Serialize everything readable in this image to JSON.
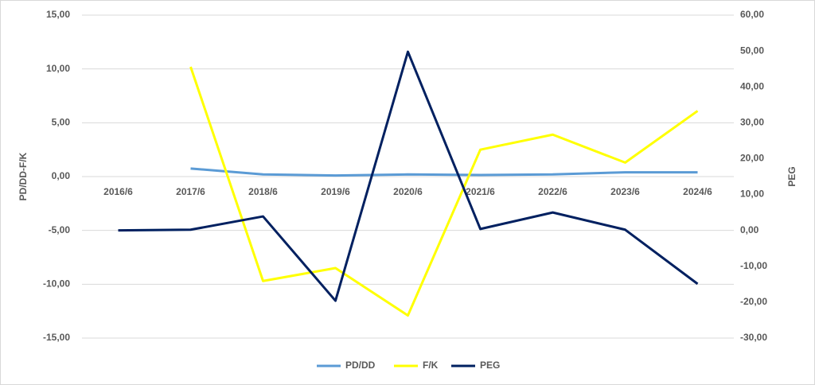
{
  "chart_data": {
    "type": "line",
    "y_label": "PD/DD-F/K",
    "y2_label": "PEG",
    "categories": [
      "2016/6",
      "2017/6",
      "2018/6",
      "2019/6",
      "2020/6",
      "2021/6",
      "2022/6",
      "2023/6",
      "2024/6"
    ],
    "series": [
      {
        "name": "PD/DD",
        "color": "#5b9bd5",
        "values": [
          null,
          0.75,
          0.2,
          0.1,
          0.2,
          0.15,
          0.2,
          0.4,
          0.4
        ]
      },
      {
        "name": "F/K",
        "color": "#ffff00",
        "values": [
          null,
          10.2,
          -9.7,
          -8.5,
          -12.9,
          2.5,
          3.9,
          1.3,
          6.1
        ]
      },
      {
        "name": "PEG",
        "color": "#002060",
        "axis": "y2",
        "values": [
          0,
          0.2,
          3.9,
          -19.6,
          49.8,
          0.4,
          5.0,
          0.2,
          -14.9
        ]
      }
    ],
    "ylim": [
      -15,
      15
    ],
    "yticks": [
      {
        "value": -15,
        "label": "-15,00"
      },
      {
        "value": -10,
        "label": "-10,00"
      },
      {
        "value": -5,
        "label": "-5,00"
      },
      {
        "value": 0,
        "label": "0,00"
      },
      {
        "value": 5,
        "label": "5,00"
      },
      {
        "value": 10,
        "label": "10,00"
      },
      {
        "value": 15,
        "label": "15,00"
      }
    ],
    "y2lim": [
      -30,
      60
    ],
    "y2ticks": [
      {
        "value": -30,
        "label": "-30,00"
      },
      {
        "value": -20,
        "label": "-20,00"
      },
      {
        "value": -10,
        "label": "-10,00"
      },
      {
        "value": 0,
        "label": "0,00"
      },
      {
        "value": 10,
        "label": "10,00"
      },
      {
        "value": 20,
        "label": "20,00"
      },
      {
        "value": 30,
        "label": "30,00"
      },
      {
        "value": 40,
        "label": "40,00"
      },
      {
        "value": 50,
        "label": "50,00"
      },
      {
        "value": 60,
        "label": "60,00"
      }
    ],
    "grid": true
  }
}
